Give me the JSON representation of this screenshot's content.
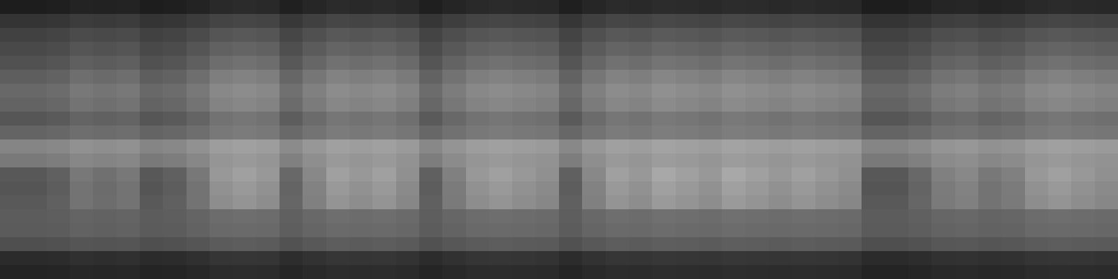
{
  "chart_data": {
    "type": "heatmap",
    "tick_labels": false,
    "zlim": [
      0,
      255
    ],
    "cells": [
      [
        29,
        29,
        31,
        35,
        34,
        35,
        29,
        31,
        35,
        41,
        43,
        41,
        32,
        38,
        43,
        41,
        43,
        40,
        31,
        37,
        41,
        43,
        41,
        40,
        31,
        38,
        43,
        41,
        44,
        43,
        41,
        44,
        43,
        41,
        43,
        41,
        40,
        29,
        29,
        32,
        37,
        38,
        35,
        37,
        41,
        43,
        41,
        40
      ],
      [
        52,
        52,
        54,
        60,
        58,
        60,
        52,
        54,
        60,
        68,
        70,
        68,
        56,
        64,
        70,
        68,
        70,
        66,
        54,
        62,
        68,
        70,
        68,
        66,
        54,
        64,
        70,
        68,
        72,
        70,
        68,
        72,
        70,
        68,
        70,
        68,
        66,
        52,
        52,
        56,
        62,
        64,
        60,
        62,
        68,
        70,
        68,
        66
      ],
      [
        65,
        65,
        68,
        75,
        73,
        75,
        65,
        68,
        75,
        85,
        88,
        85,
        70,
        80,
        88,
        85,
        88,
        83,
        68,
        78,
        85,
        88,
        85,
        83,
        68,
        80,
        88,
        85,
        90,
        88,
        85,
        90,
        88,
        85,
        88,
        85,
        83,
        65,
        65,
        70,
        78,
        80,
        75,
        78,
        85,
        88,
        85,
        83
      ],
      [
        73,
        73,
        76,
        85,
        82,
        85,
        73,
        76,
        85,
        97,
        100,
        97,
        79,
        91,
        100,
        97,
        100,
        94,
        76,
        88,
        97,
        100,
        97,
        94,
        76,
        91,
        100,
        97,
        103,
        100,
        97,
        103,
        100,
        97,
        100,
        97,
        94,
        73,
        73,
        79,
        88,
        91,
        85,
        88,
        97,
        100,
        97,
        94
      ],
      [
        81,
        81,
        85,
        95,
        92,
        95,
        81,
        85,
        95,
        109,
        113,
        109,
        88,
        102,
        113,
        109,
        113,
        106,
        85,
        99,
        109,
        113,
        109,
        106,
        85,
        102,
        113,
        109,
        116,
        113,
        109,
        116,
        113,
        109,
        113,
        109,
        106,
        81,
        81,
        88,
        99,
        102,
        95,
        99,
        109,
        113,
        109,
        106
      ],
      [
        94,
        94,
        98,
        110,
        106,
        110,
        94,
        98,
        110,
        126,
        130,
        126,
        102,
        118,
        130,
        126,
        130,
        122,
        98,
        114,
        126,
        130,
        126,
        122,
        98,
        118,
        130,
        126,
        134,
        130,
        126,
        134,
        130,
        126,
        130,
        126,
        122,
        94,
        94,
        102,
        114,
        118,
        110,
        114,
        126,
        130,
        126,
        122
      ],
      [
        104,
        104,
        108,
        120,
        116,
        120,
        104,
        108,
        120,
        136,
        140,
        136,
        112,
        128,
        140,
        136,
        140,
        132,
        108,
        124,
        136,
        140,
        136,
        132,
        108,
        128,
        140,
        136,
        144,
        140,
        136,
        144,
        140,
        136,
        140,
        136,
        132,
        104,
        104,
        112,
        124,
        128,
        120,
        124,
        136,
        140,
        136,
        132
      ],
      [
        99,
        99,
        103,
        115,
        111,
        115,
        99,
        103,
        115,
        131,
        135,
        131,
        107,
        123,
        135,
        131,
        135,
        127,
        103,
        119,
        131,
        135,
        131,
        127,
        103,
        123,
        135,
        131,
        139,
        135,
        131,
        139,
        135,
        131,
        135,
        131,
        127,
        99,
        99,
        107,
        119,
        123,
        115,
        119,
        131,
        135,
        131,
        127
      ],
      [
        86,
        86,
        90,
        100,
        97,
        100,
        86,
        90,
        100,
        114,
        118,
        114,
        93,
        107,
        118,
        114,
        118,
        111,
        90,
        104,
        114,
        118,
        114,
        111,
        90,
        107,
        118,
        114,
        121,
        118,
        114,
        121,
        118,
        114,
        118,
        114,
        111,
        86,
        86,
        93,
        104,
        107,
        100,
        104,
        114,
        118,
        114,
        111
      ],
      [
        100,
        100,
        103,
        110,
        108,
        110,
        100,
        103,
        110,
        120,
        123,
        120,
        105,
        115,
        123,
        120,
        123,
        118,
        103,
        113,
        120,
        123,
        120,
        118,
        103,
        115,
        123,
        120,
        125,
        123,
        120,
        125,
        123,
        120,
        123,
        120,
        118,
        100,
        100,
        105,
        113,
        115,
        110,
        113,
        120,
        123,
        120,
        118
      ],
      [
        133,
        133,
        136,
        145,
        142,
        145,
        133,
        136,
        145,
        157,
        160,
        157,
        139,
        151,
        160,
        157,
        160,
        154,
        136,
        148,
        157,
        160,
        157,
        154,
        136,
        151,
        160,
        157,
        163,
        160,
        157,
        163,
        160,
        157,
        160,
        157,
        154,
        133,
        133,
        139,
        148,
        151,
        145,
        148,
        157,
        160,
        157,
        154
      ],
      [
        121,
        121,
        125,
        135,
        132,
        135,
        121,
        125,
        135,
        149,
        153,
        149,
        128,
        142,
        153,
        149,
        153,
        146,
        125,
        139,
        149,
        153,
        149,
        146,
        125,
        142,
        153,
        149,
        156,
        153,
        149,
        156,
        153,
        149,
        153,
        149,
        146,
        121,
        121,
        128,
        139,
        142,
        135,
        139,
        149,
        153,
        149,
        146
      ],
      [
        88,
        88,
        96,
        120,
        112,
        120,
        88,
        96,
        120,
        152,
        160,
        152,
        104,
        136,
        160,
        152,
        160,
        144,
        96,
        128,
        152,
        160,
        152,
        144,
        96,
        136,
        160,
        152,
        168,
        160,
        152,
        168,
        160,
        152,
        160,
        152,
        144,
        88,
        88,
        104,
        128,
        136,
        120,
        128,
        152,
        160,
        152,
        144
      ],
      [
        85,
        85,
        93,
        115,
        108,
        115,
        85,
        93,
        115,
        145,
        153,
        145,
        100,
        130,
        153,
        145,
        153,
        138,
        93,
        123,
        145,
        153,
        145,
        138,
        93,
        130,
        153,
        145,
        160,
        153,
        145,
        160,
        153,
        145,
        153,
        145,
        138,
        85,
        85,
        100,
        123,
        130,
        115,
        123,
        145,
        153,
        145,
        138
      ],
      [
        89,
        89,
        96,
        115,
        109,
        115,
        89,
        96,
        115,
        141,
        148,
        141,
        102,
        128,
        148,
        141,
        148,
        135,
        96,
        122,
        141,
        148,
        141,
        135,
        96,
        128,
        148,
        141,
        154,
        148,
        141,
        154,
        148,
        141,
        148,
        141,
        135,
        89,
        89,
        102,
        122,
        128,
        115,
        122,
        141,
        148,
        141,
        135
      ],
      [
        92,
        92,
        94,
        100,
        98,
        100,
        92,
        94,
        100,
        108,
        110,
        108,
        96,
        104,
        110,
        108,
        110,
        106,
        94,
        102,
        108,
        110,
        108,
        106,
        94,
        104,
        110,
        108,
        112,
        110,
        108,
        112,
        110,
        108,
        110,
        108,
        106,
        92,
        92,
        96,
        102,
        104,
        100,
        102,
        108,
        110,
        108,
        106
      ],
      [
        91,
        91,
        92,
        98,
        96,
        98,
        91,
        92,
        98,
        105,
        106,
        105,
        94,
        101,
        106,
        105,
        106,
        103,
        92,
        99,
        105,
        106,
        105,
        103,
        92,
        101,
        106,
        105,
        108,
        106,
        105,
        108,
        106,
        105,
        106,
        105,
        103,
        91,
        91,
        94,
        99,
        101,
        98,
        99,
        105,
        106,
        105,
        103
      ],
      [
        79,
        79,
        81,
        85,
        84,
        85,
        79,
        81,
        85,
        91,
        93,
        91,
        82,
        88,
        93,
        91,
        93,
        90,
        81,
        87,
        91,
        93,
        91,
        90,
        81,
        88,
        93,
        91,
        94,
        93,
        91,
        94,
        93,
        91,
        93,
        91,
        90,
        79,
        79,
        82,
        87,
        88,
        85,
        87,
        91,
        93,
        91,
        90
      ],
      [
        43,
        43,
        44,
        48,
        46,
        48,
        43,
        44,
        48,
        53,
        54,
        53,
        45,
        50,
        54,
        53,
        54,
        51,
        44,
        49,
        53,
        54,
        53,
        51,
        44,
        50,
        54,
        53,
        55,
        54,
        53,
        55,
        54,
        53,
        54,
        53,
        51,
        43,
        43,
        45,
        49,
        50,
        48,
        49,
        53,
        54,
        53,
        51
      ],
      [
        36,
        36,
        37,
        40,
        39,
        40,
        36,
        37,
        40,
        44,
        45,
        44,
        38,
        42,
        45,
        44,
        45,
        43,
        37,
        41,
        44,
        45,
        44,
        43,
        37,
        42,
        45,
        44,
        46,
        45,
        44,
        46,
        45,
        44,
        45,
        44,
        43,
        36,
        36,
        38,
        41,
        42,
        40,
        41,
        44,
        45,
        44,
        43
      ]
    ]
  }
}
